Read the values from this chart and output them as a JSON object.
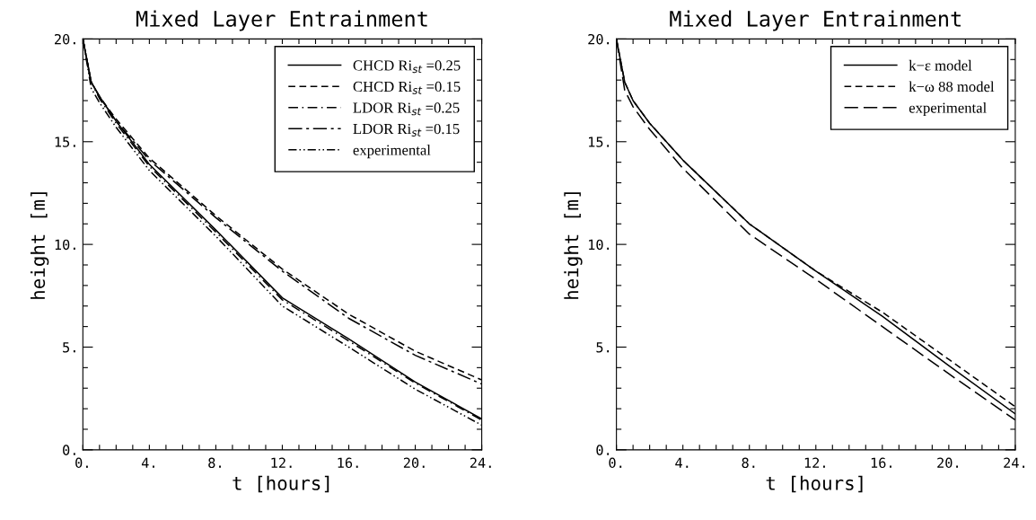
{
  "chart_data": [
    {
      "type": "line",
      "title": "Mixed Layer Entrainment",
      "xlabel": "t [hours]",
      "ylabel": "height [m]",
      "x": [
        0,
        0.5,
        1,
        2,
        4,
        8,
        12,
        16,
        20,
        24
      ],
      "series": [
        {
          "name": "CHCD Ri$_{st}$ =0.25",
          "color": "#000000",
          "line_style": "solid",
          "values": [
            20,
            17.9,
            17.2,
            16.0,
            13.9,
            10.7,
            7.4,
            5.4,
            3.3,
            1.5
          ]
        },
        {
          "name": "CHCD Ri$_{st}$ =0.15",
          "color": "#000000",
          "line_style": "dashed",
          "values": [
            20,
            17.9,
            17.2,
            16.1,
            14.2,
            11.4,
            8.8,
            6.6,
            4.8,
            3.4
          ]
        },
        {
          "name": "LDOR Ri$_{st}$ =0.25",
          "color": "#000000",
          "line_style": "dashdot",
          "values": [
            20,
            17.9,
            17.1,
            15.9,
            13.8,
            10.6,
            7.3,
            5.3,
            3.25,
            1.45
          ]
        },
        {
          "name": "LDOR Ri$_{st}$ =0.15",
          "color": "#000000",
          "line_style": "longdashdot",
          "values": [
            20,
            17.9,
            17.2,
            16.0,
            14.1,
            11.3,
            8.7,
            6.4,
            4.6,
            3.2
          ]
        },
        {
          "name": "experimental",
          "color": "#000000",
          "line_style": "dashdotdot",
          "values": [
            20,
            17.6,
            16.9,
            15.7,
            13.6,
            10.4,
            7.0,
            5.0,
            2.95,
            1.2
          ]
        }
      ],
      "xlim": [
        0,
        24
      ],
      "ylim": [
        0,
        20
      ],
      "xticks": [
        {
          "value": 0,
          "label": "0."
        },
        {
          "value": 1,
          "label": null
        },
        {
          "value": 2,
          "label": null
        },
        {
          "value": 3,
          "label": null
        },
        {
          "value": 4,
          "label": "4."
        },
        {
          "value": 5,
          "label": null
        },
        {
          "value": 6,
          "label": null
        },
        {
          "value": 7,
          "label": null
        },
        {
          "value": 8,
          "label": "8."
        },
        {
          "value": 9,
          "label": null
        },
        {
          "value": 10,
          "label": null
        },
        {
          "value": 11,
          "label": null
        },
        {
          "value": 12,
          "label": "12."
        },
        {
          "value": 13,
          "label": null
        },
        {
          "value": 14,
          "label": null
        },
        {
          "value": 15,
          "label": null
        },
        {
          "value": 16,
          "label": "16."
        },
        {
          "value": 17,
          "label": null
        },
        {
          "value": 18,
          "label": null
        },
        {
          "value": 19,
          "label": null
        },
        {
          "value": 20,
          "label": "20."
        },
        {
          "value": 21,
          "label": null
        },
        {
          "value": 22,
          "label": null
        },
        {
          "value": 23,
          "label": null
        },
        {
          "value": 24,
          "label": "24."
        }
      ],
      "yticks": [
        {
          "value": 0,
          "label": "0."
        },
        {
          "value": 1,
          "label": null
        },
        {
          "value": 2,
          "label": null
        },
        {
          "value": 3,
          "label": null
        },
        {
          "value": 4,
          "label": null
        },
        {
          "value": 5,
          "label": "5."
        },
        {
          "value": 6,
          "label": null
        },
        {
          "value": 7,
          "label": null
        },
        {
          "value": 8,
          "label": null
        },
        {
          "value": 9,
          "label": null
        },
        {
          "value": 10,
          "label": "10."
        },
        {
          "value": 11,
          "label": null
        },
        {
          "value": 12,
          "label": null
        },
        {
          "value": 13,
          "label": null
        },
        {
          "value": 14,
          "label": null
        },
        {
          "value": 15,
          "label": "15."
        },
        {
          "value": 16,
          "label": null
        },
        {
          "value": 17,
          "label": null
        },
        {
          "value": 18,
          "label": null
        },
        {
          "value": 19,
          "label": null
        },
        {
          "value": 20,
          "label": "20."
        }
      ],
      "legend": "top right"
    },
    {
      "type": "line",
      "title": "Mixed Layer Entrainment",
      "xlabel": "t [hours]",
      "ylabel": "height [m]",
      "x": [
        0,
        0.5,
        1,
        2,
        4,
        8,
        12,
        16,
        20,
        24
      ],
      "series": [
        {
          "name": "k−ε model",
          "color": "#000000",
          "line_style": "solid",
          "values": [
            20,
            17.9,
            17.0,
            15.9,
            14.1,
            11.0,
            8.7,
            6.5,
            4.1,
            1.75
          ]
        },
        {
          "name": "k−ω 88 model",
          "color": "#000000",
          "line_style": "dashed",
          "values": [
            20,
            17.9,
            17.0,
            15.9,
            14.1,
            11.0,
            8.7,
            6.7,
            4.4,
            2.1
          ]
        },
        {
          "name": "experimental",
          "color": "#000000",
          "line_style": "longdash",
          "values": [
            20,
            17.5,
            16.7,
            15.6,
            13.7,
            10.5,
            8.3,
            6.0,
            3.7,
            1.45
          ]
        }
      ],
      "xlim": [
        0,
        24
      ],
      "ylim": [
        0,
        20
      ],
      "xticks": [
        {
          "value": 0,
          "label": "0."
        },
        {
          "value": 1,
          "label": null
        },
        {
          "value": 2,
          "label": null
        },
        {
          "value": 3,
          "label": null
        },
        {
          "value": 4,
          "label": "4."
        },
        {
          "value": 5,
          "label": null
        },
        {
          "value": 6,
          "label": null
        },
        {
          "value": 7,
          "label": null
        },
        {
          "value": 8,
          "label": "8."
        },
        {
          "value": 9,
          "label": null
        },
        {
          "value": 10,
          "label": null
        },
        {
          "value": 11,
          "label": null
        },
        {
          "value": 12,
          "label": "12."
        },
        {
          "value": 13,
          "label": null
        },
        {
          "value": 14,
          "label": null
        },
        {
          "value": 15,
          "label": null
        },
        {
          "value": 16,
          "label": "16."
        },
        {
          "value": 17,
          "label": null
        },
        {
          "value": 18,
          "label": null
        },
        {
          "value": 19,
          "label": null
        },
        {
          "value": 20,
          "label": "20."
        },
        {
          "value": 21,
          "label": null
        },
        {
          "value": 22,
          "label": null
        },
        {
          "value": 23,
          "label": null
        },
        {
          "value": 24,
          "label": "24."
        }
      ],
      "yticks": [
        {
          "value": 0,
          "label": "0."
        },
        {
          "value": 1,
          "label": null
        },
        {
          "value": 2,
          "label": null
        },
        {
          "value": 3,
          "label": null
        },
        {
          "value": 4,
          "label": null
        },
        {
          "value": 5,
          "label": "5."
        },
        {
          "value": 6,
          "label": null
        },
        {
          "value": 7,
          "label": null
        },
        {
          "value": 8,
          "label": null
        },
        {
          "value": 9,
          "label": null
        },
        {
          "value": 10,
          "label": "10."
        },
        {
          "value": 11,
          "label": null
        },
        {
          "value": 12,
          "label": null
        },
        {
          "value": 13,
          "label": null
        },
        {
          "value": 14,
          "label": null
        },
        {
          "value": 15,
          "label": "15."
        },
        {
          "value": 16,
          "label": null
        },
        {
          "value": 17,
          "label": null
        },
        {
          "value": 18,
          "label": null
        },
        {
          "value": 19,
          "label": null
        },
        {
          "value": 20,
          "label": "20."
        }
      ],
      "legend": "top right"
    }
  ]
}
